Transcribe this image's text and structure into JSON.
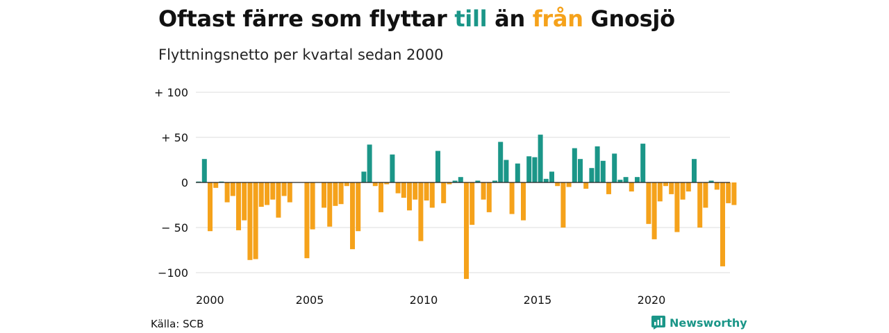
{
  "title": {
    "part1": "Oftast färre som flyttar ",
    "highlight_in": "till",
    "part2": " än ",
    "highlight_out": "från",
    "part3": " Gnosjö"
  },
  "subtitle": "Flyttningsnetto per kvartal sedan 2000",
  "source": "Källa: SCB",
  "brand": {
    "name": "Newsworthy",
    "icon": "newsworthy-logo-icon"
  },
  "colors": {
    "positive": "#1b9688",
    "negative": "#f5a21b",
    "grid": "#dddddd",
    "zero_line": "#222222"
  },
  "chart_data": {
    "type": "bar",
    "xlabel": "",
    "ylabel": "",
    "ylim": [
      -110,
      100
    ],
    "grid": true,
    "legend": "none",
    "y_ticks": [
      {
        "value": 100,
        "label": "+ 100"
      },
      {
        "value": 50,
        "label": "+  50"
      },
      {
        "value": 0,
        "label": "0"
      },
      {
        "value": -50,
        "label": "− 50"
      },
      {
        "value": -100,
        "label": "−100"
      }
    ],
    "x_ticks": [
      {
        "quarter_index": 0,
        "label": "2000"
      },
      {
        "quarter_index": 20,
        "label": "2005"
      },
      {
        "quarter_index": 40,
        "label": "2010"
      },
      {
        "quarter_index": 60,
        "label": "2015"
      },
      {
        "quarter_index": 80,
        "label": "2020"
      }
    ],
    "first_period": "2000 Q1",
    "values": [
      1,
      26,
      -54,
      -6,
      1,
      -22,
      -15,
      -53,
      -42,
      -86,
      -85,
      -27,
      -25,
      -19,
      -39,
      -15,
      -22,
      0,
      0,
      -84,
      -52,
      0,
      -28,
      -49,
      -26,
      -24,
      -4,
      -74,
      -54,
      12,
      42,
      -4,
      -33,
      -2,
      31,
      -12,
      -17,
      -31,
      -19,
      -65,
      -20,
      -28,
      35,
      -23,
      -2,
      2,
      6,
      -107,
      -47,
      2,
      -19,
      -33,
      2,
      45,
      25,
      -35,
      21,
      -42,
      29,
      28,
      53,
      4,
      12,
      -4,
      -50,
      -5,
      38,
      26,
      -7,
      16,
      40,
      24,
      -13,
      32,
      3,
      6,
      -10,
      6,
      43,
      -46,
      -63,
      -21,
      -4,
      -13,
      -55,
      -19,
      -10,
      26,
      -50,
      -28,
      2,
      -8,
      -93,
      -23,
      -25
    ]
  }
}
